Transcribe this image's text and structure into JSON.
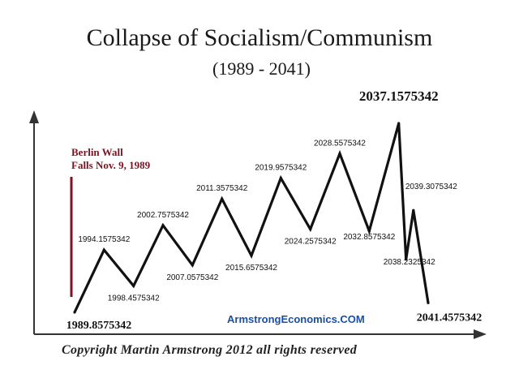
{
  "header": {
    "title": "Collapse of Socialism/Communism",
    "subtitle": "(1989 - 2041)"
  },
  "annotation": {
    "berlin_wall_line1": "Berlin Wall",
    "berlin_wall_line2": "Falls Nov. 9, 1989",
    "color": "#7a1420"
  },
  "footer": {
    "website": "ArmstrongEconomics.COM",
    "copyright": "Copyright Martin Armstrong 2012 all rights reserved"
  },
  "chart_data": {
    "type": "line",
    "title": "Collapse of Socialism/Communism",
    "subtitle": "(1989 - 2041)",
    "points": [
      {
        "label": "1989.8575342",
        "kind": "start"
      },
      {
        "label": "1994.1575342",
        "kind": "high"
      },
      {
        "label": "1998.4575342",
        "kind": "low"
      },
      {
        "label": "2002.7575342",
        "kind": "high"
      },
      {
        "label": "2007.0575342",
        "kind": "low"
      },
      {
        "label": "2011.3575342",
        "kind": "high"
      },
      {
        "label": "2015.6575342",
        "kind": "low"
      },
      {
        "label": "2019.9575342",
        "kind": "high"
      },
      {
        "label": "2024.2575342",
        "kind": "low"
      },
      {
        "label": "2028.5575342",
        "kind": "high"
      },
      {
        "label": "2032.8575342",
        "kind": "low"
      },
      {
        "label": "2037.1575342",
        "kind": "peak"
      },
      {
        "label": "2038.2325342",
        "kind": "low"
      },
      {
        "label": "2039.3075342",
        "kind": "high"
      },
      {
        "label": "2041.4575342",
        "kind": "end"
      }
    ],
    "relative_levels": [
      0.0,
      0.33,
      0.14,
      0.46,
      0.25,
      0.6,
      0.3,
      0.71,
      0.44,
      0.84,
      0.43,
      1.0,
      0.28,
      0.54,
      0.05
    ],
    "axes": "unlabeled",
    "grid": false,
    "legend": "none",
    "line_color": "#111111"
  }
}
